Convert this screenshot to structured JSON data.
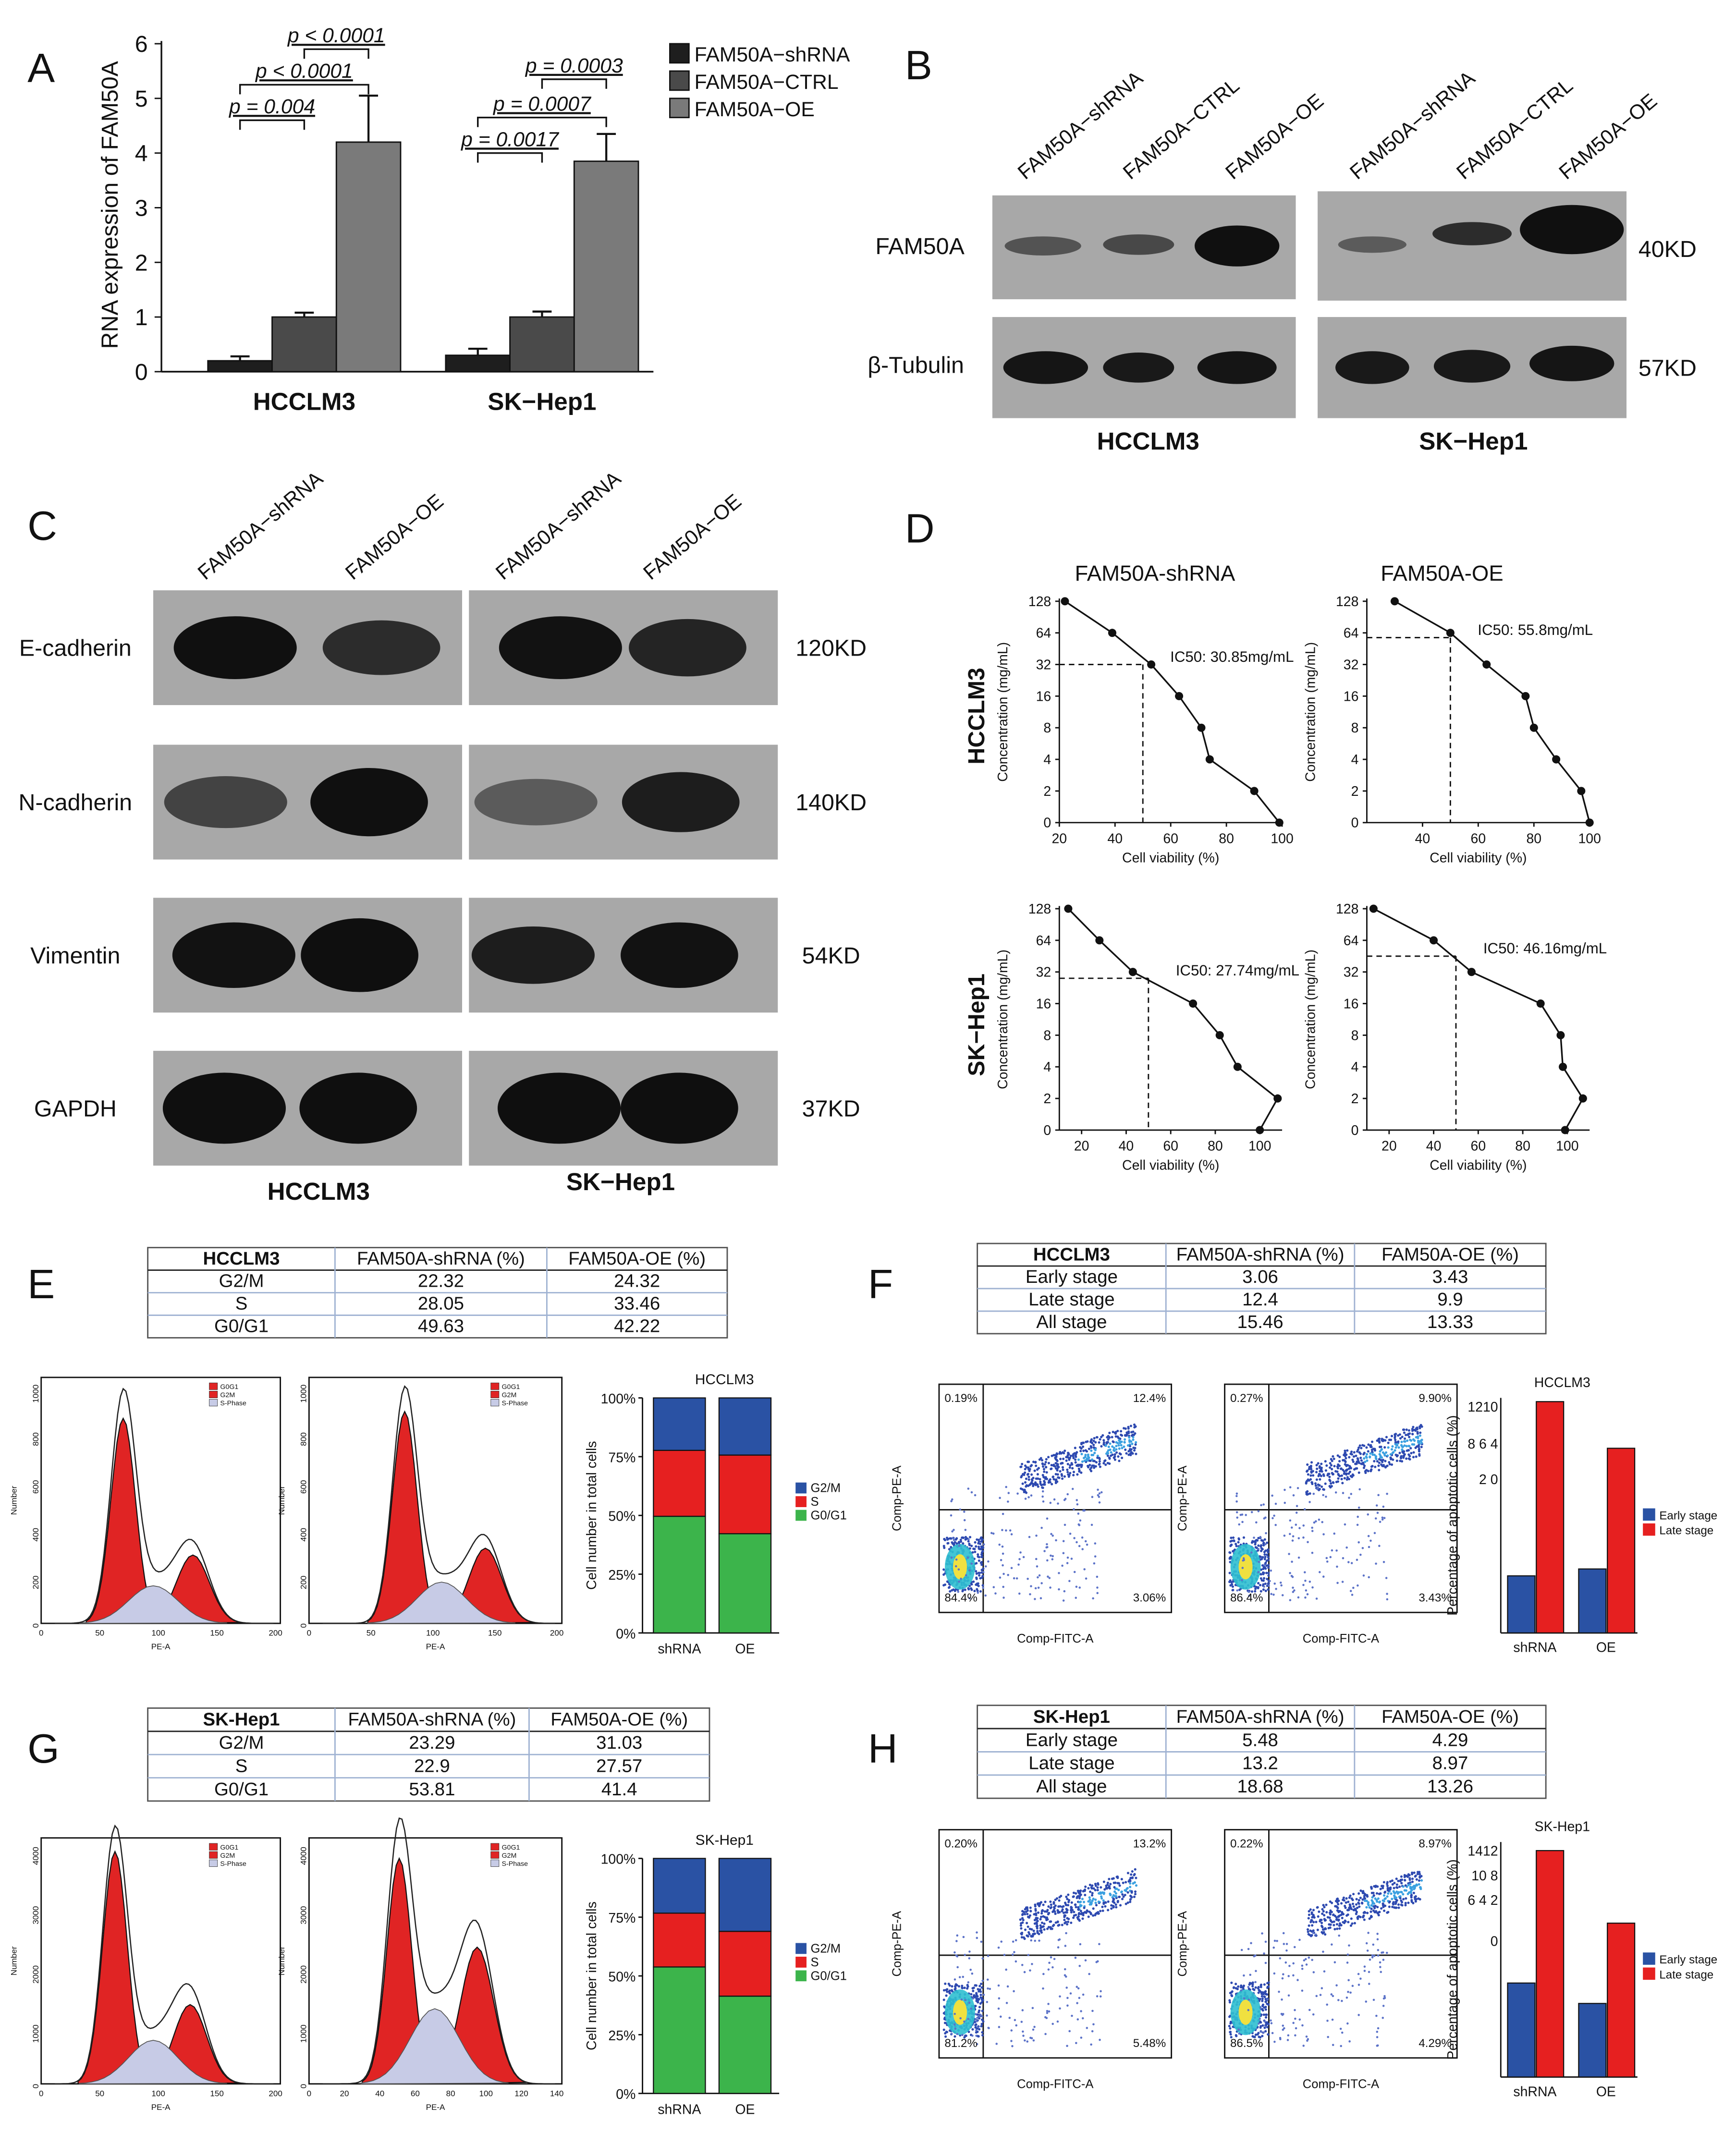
{
  "panels": {
    "A": {
      "letter": "A",
      "ylabel": "RNA expression of FAM50A",
      "legend": [
        "FAM50A−shRNA",
        "FAM50A−CTRL",
        "FAM50A−OE"
      ],
      "colors": [
        "#1e1e1e",
        "#4a4a4a",
        "#7a7a7a"
      ],
      "chart_data": {
        "type": "bar",
        "categories": [
          "HCCLM3",
          "SK−Hep1"
        ],
        "ylim": [
          0,
          6
        ],
        "yticks": [
          0,
          1,
          2,
          3,
          4,
          5,
          6
        ],
        "series": [
          {
            "name": "FAM50A−shRNA",
            "values": [
              0.2,
              0.3
            ],
            "errors": [
              0.08,
              0.12
            ]
          },
          {
            "name": "FAM50A−CTRL",
            "values": [
              1.0,
              1.0
            ],
            "errors": [
              0.08,
              0.1
            ]
          },
          {
            "name": "FAM50A−OE",
            "values": [
              4.2,
              3.85
            ],
            "errors": [
              0.85,
              0.5
            ]
          }
        ],
        "pvalues": [
          [
            "p = 0.004",
            "p < 0.0001",
            "p < 0.0001"
          ],
          [
            "p = 0.0017",
            "p = 0.0007",
            "p = 0.0003"
          ]
        ]
      }
    },
    "B": {
      "letter": "B",
      "lanes": [
        "FAM50A−shRNA",
        "FAM50A−CTRL",
        "FAM50A−OE"
      ],
      "rows": [
        "FAM50A",
        "β-Tubulin"
      ],
      "sizes": [
        "40KD",
        "57KD"
      ],
      "groups": [
        "HCCLM3",
        "SK−Hep1"
      ]
    },
    "C": {
      "letter": "C",
      "lanes": [
        "FAM50A−shRNA",
        "FAM50A−OE"
      ],
      "rows": [
        "E-cadherin",
        "N-cadherin",
        "Vimentin",
        "GAPDH"
      ],
      "sizes": [
        "120KD",
        "140KD",
        "54KD",
        "37KD"
      ],
      "groups": [
        "HCCLM3",
        "SK−Hep1"
      ]
    },
    "D": {
      "letter": "D",
      "col_titles": [
        "FAM50A-shRNA",
        "FAM50A-OE"
      ],
      "row_titles": [
        "HCCLM3",
        "SK−Hep1"
      ],
      "ylabel": "Concentration (mg/mL)",
      "xlabel": "Cell viability (%)",
      "yticks": [
        "0",
        "2",
        "4",
        "8",
        "16",
        "32",
        "64",
        "128"
      ],
      "chart_data": [
        {
          "type": "scatter",
          "ic50": "IC50: 30.85mg/mL",
          "xlim": [
            20,
            100
          ],
          "xticks": [
            20,
            40,
            60,
            80,
            100
          ],
          "ic50_idx": 5.0,
          "points": [
            [
              22,
              7
            ],
            [
              39,
              6
            ],
            [
              53,
              5
            ],
            [
              63,
              4
            ],
            [
              71,
              3
            ],
            [
              74,
              2
            ],
            [
              90,
              1
            ],
            [
              99,
              0
            ]
          ]
        },
        {
          "type": "scatter",
          "ic50": "IC50: 55.8mg/mL",
          "xlim": [
            20,
            100
          ],
          "xticks": [
            40,
            60,
            80,
            100
          ],
          "ic50_idx": 5.85,
          "points": [
            [
              30,
              7
            ],
            [
              50,
              6
            ],
            [
              63,
              5
            ],
            [
              77,
              4
            ],
            [
              80,
              3
            ],
            [
              88,
              2
            ],
            [
              97,
              1
            ],
            [
              100,
              0
            ]
          ]
        },
        {
          "type": "scatter",
          "ic50": "IC50: 27.74mg/mL",
          "xlim": [
            10,
            110
          ],
          "xticks": [
            20,
            40,
            60,
            80,
            100
          ],
          "ic50_idx": 4.8,
          "points": [
            [
              14,
              7
            ],
            [
              28,
              6
            ],
            [
              43,
              5
            ],
            [
              70,
              4
            ],
            [
              82,
              3
            ],
            [
              90,
              2
            ],
            [
              100,
              0
            ],
            [
              108,
              1
            ]
          ]
        },
        {
          "type": "scatter",
          "ic50": "IC50: 46.16mg/mL",
          "xlim": [
            10,
            110
          ],
          "xticks": [
            20,
            40,
            60,
            80,
            100
          ],
          "ic50_idx": 5.5,
          "points": [
            [
              13,
              7
            ],
            [
              40,
              6
            ],
            [
              57,
              5
            ],
            [
              88,
              4
            ],
            [
              97,
              3
            ],
            [
              98,
              2
            ],
            [
              99,
              0
            ],
            [
              107,
              1
            ]
          ]
        }
      ]
    },
    "E": {
      "letter": "E",
      "table": {
        "header": [
          "HCCLM3",
          "FAM50A-shRNA (%)",
          "FAM50A-OE (%)"
        ],
        "rows": [
          [
            "G2/M",
            "22.32",
            "24.32"
          ],
          [
            "S",
            "28.05",
            "33.46"
          ],
          [
            "G0/G1",
            "49.63",
            "42.22"
          ]
        ]
      },
      "hist_xticks": [
        "0",
        "50",
        "100",
        "150",
        "200"
      ],
      "hist_yticks": [
        "0",
        "200",
        "400",
        "600",
        "800",
        "1000"
      ],
      "hist_ylabel": "Number",
      "hist_xlabel": "PE-A",
      "legend": [
        "G0G1",
        "G2M",
        "S-Phase"
      ],
      "bar_title": "HCCLM3",
      "bar_ylabel": "Cell number in total cells",
      "chart_data": {
        "type": "bar",
        "categories": [
          "shRNA",
          "OE"
        ],
        "series": [
          {
            "name": "G0/G1",
            "values": [
              49.63,
              42.22
            ]
          },
          {
            "name": "S",
            "values": [
              28.05,
              33.46
            ]
          },
          {
            "name": "G2/M",
            "values": [
              22.32,
              24.32
            ]
          }
        ],
        "yticks": [
          "0%",
          "25%",
          "50%",
          "75%",
          "100%"
        ]
      }
    },
    "F": {
      "letter": "F",
      "table": {
        "header": [
          "HCCLM3",
          "FAM50A-shRNA (%)",
          "FAM50A-OE (%)"
        ],
        "rows": [
          [
            "Early stage",
            "3.06",
            "3.43"
          ],
          [
            "Late stage",
            "12.4",
            "9.9"
          ],
          [
            "All stage",
            "15.46",
            "13.33"
          ]
        ]
      },
      "flow": [
        {
          "q1": "0.19%",
          "q2": "12.4%",
          "q3": "3.06%",
          "q4": "84.4%"
        },
        {
          "q1": "0.27%",
          "q2": "9.90%",
          "q3": "3.43%",
          "q4": "86.4%"
        }
      ],
      "ylabel_flow": "Comp-PE-A",
      "xlabel_flow": "Comp-FITC-A",
      "bar_title": "HCCLM3",
      "bar_ylabel": "Percentage of apoptotic cells (%)",
      "bar_ticks_text": "1210",
      "bar_ticks_text2": "8 6 4",
      "bar_ticks_text3": "2 0",
      "chart_data": {
        "type": "bar",
        "categories": [
          "shRNA",
          "OE"
        ],
        "series": [
          {
            "name": "Early stage",
            "values": [
              3.06,
              3.43
            ]
          },
          {
            "name": "Late stage",
            "values": [
              12.4,
              9.9
            ]
          }
        ]
      }
    },
    "G": {
      "letter": "G",
      "table": {
        "header": [
          "SK-Hep1",
          "FAM50A-shRNA (%)",
          "FAM50A-OE (%)"
        ],
        "rows": [
          [
            "G2/M",
            "23.29",
            "31.03"
          ],
          [
            "S",
            "22.9",
            "27.57"
          ],
          [
            "G0/G1",
            "53.81",
            "41.4"
          ]
        ]
      },
      "hist_xticks_1": [
        "0",
        "50",
        "100",
        "150",
        "200"
      ],
      "hist_xticks_2": [
        "0",
        "20",
        "40",
        "60",
        "80",
        "100",
        "120",
        "140"
      ],
      "hist_yticks": [
        "0",
        "1000",
        "2000",
        "3000",
        "4000"
      ],
      "bar_title": "SK-Hep1",
      "chart_data": {
        "type": "bar",
        "categories": [
          "shRNA",
          "OE"
        ],
        "series": [
          {
            "name": "G0/G1",
            "values": [
              53.81,
              41.4
            ]
          },
          {
            "name": "S",
            "values": [
              22.9,
              27.57
            ]
          },
          {
            "name": "G2/M",
            "values": [
              23.29,
              31.03
            ]
          }
        ]
      }
    },
    "H": {
      "letter": "H",
      "table": {
        "header": [
          "SK-Hep1",
          "FAM50A-shRNA (%)",
          "FAM50A-OE (%)"
        ],
        "rows": [
          [
            "Early stage",
            "5.48",
            "4.29"
          ],
          [
            "Late stage",
            "13.2",
            "8.97"
          ],
          [
            "All stage",
            "18.68",
            "13.26"
          ]
        ]
      },
      "flow": [
        {
          "q1": "0.20%",
          "q2": "13.2%",
          "q3": "5.48%",
          "q4": "81.2%"
        },
        {
          "q1": "0.22%",
          "q2": "8.97%",
          "q3": "4.29%",
          "q4": "86.5%"
        }
      ],
      "bar_title": "SK-Hep1",
      "bar_ticks_text": "1412",
      "bar_ticks_text2": "10 8",
      "bar_ticks_text3": "6 4 2",
      "bar_ticks_text4": "0",
      "chart_data": {
        "type": "bar",
        "categories": [
          "shRNA",
          "OE"
        ],
        "series": [
          {
            "name": "Early stage",
            "values": [
              5.48,
              4.29
            ]
          },
          {
            "name": "Late stage",
            "values": [
              13.2,
              8.97
            ]
          }
        ]
      }
    }
  }
}
